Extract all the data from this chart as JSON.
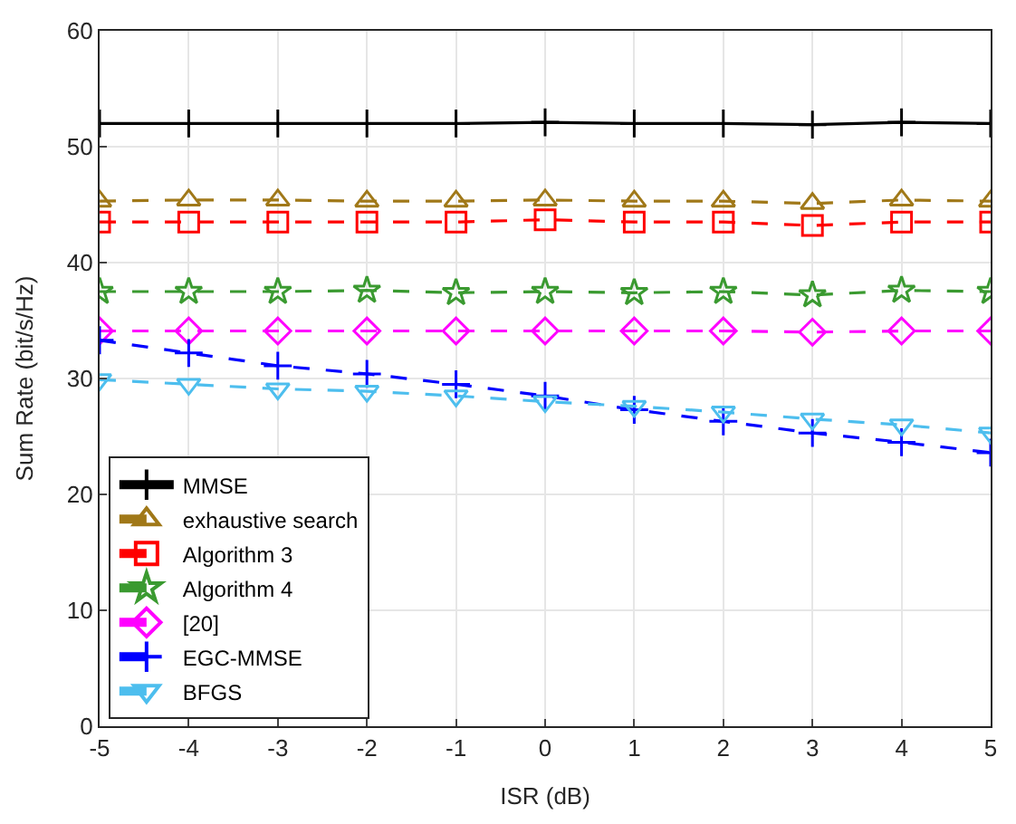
{
  "chart_data": {
    "type": "line",
    "xlabel": "ISR (dB)",
    "ylabel": "Sum Rate (bit/s/Hz)",
    "x": [
      -5,
      -4,
      -3,
      -2,
      -1,
      0,
      1,
      2,
      3,
      4,
      5
    ],
    "xlim": [
      -5,
      5
    ],
    "xticks": [
      -5,
      -4,
      -3,
      -2,
      -1,
      0,
      1,
      2,
      3,
      4,
      5
    ],
    "ylim": [
      0,
      60
    ],
    "yticks": [
      0,
      10,
      20,
      30,
      40,
      50,
      60
    ],
    "grid": true,
    "legend": "bottom left",
    "line_style": "dashed",
    "series": [
      {
        "name": "MMSE",
        "color": "#000000",
        "marker": "cross",
        "line_style": "solid",
        "values": [
          52.0,
          52.0,
          52.0,
          52.0,
          52.0,
          52.1,
          52.0,
          52.0,
          51.9,
          52.1,
          52.0
        ]
      },
      {
        "name": "exhaustive search",
        "color": "#a07818",
        "marker": "triangle",
        "values": [
          45.3,
          45.4,
          45.4,
          45.3,
          45.3,
          45.4,
          45.3,
          45.3,
          45.1,
          45.4,
          45.3
        ]
      },
      {
        "name": "Algorithm 3",
        "color": "#ff0000",
        "marker": "square",
        "values": [
          43.5,
          43.5,
          43.5,
          43.5,
          43.5,
          43.7,
          43.5,
          43.5,
          43.2,
          43.5,
          43.5
        ]
      },
      {
        "name": "Algorithm 4",
        "color": "#3a9a30",
        "marker": "star",
        "values": [
          37.5,
          37.5,
          37.5,
          37.6,
          37.4,
          37.5,
          37.4,
          37.5,
          37.2,
          37.6,
          37.5
        ]
      },
      {
        "name": "[20]",
        "color": "#ff00ff",
        "marker": "diamond",
        "values": [
          34.1,
          34.1,
          34.1,
          34.1,
          34.1,
          34.1,
          34.1,
          34.1,
          34.0,
          34.1,
          34.1
        ]
      },
      {
        "name": "EGC-MMSE",
        "color": "#0000ff",
        "marker": "cross",
        "values": [
          33.3,
          32.2,
          31.1,
          30.4,
          29.5,
          28.5,
          27.3,
          26.3,
          25.3,
          24.5,
          23.6
        ]
      },
      {
        "name": "BFGS",
        "color": "#4dbeee",
        "marker": "triangle-down",
        "values": [
          29.9,
          29.5,
          29.1,
          28.9,
          28.5,
          28.0,
          27.6,
          27.1,
          26.5,
          26.0,
          25.3
        ]
      }
    ]
  }
}
